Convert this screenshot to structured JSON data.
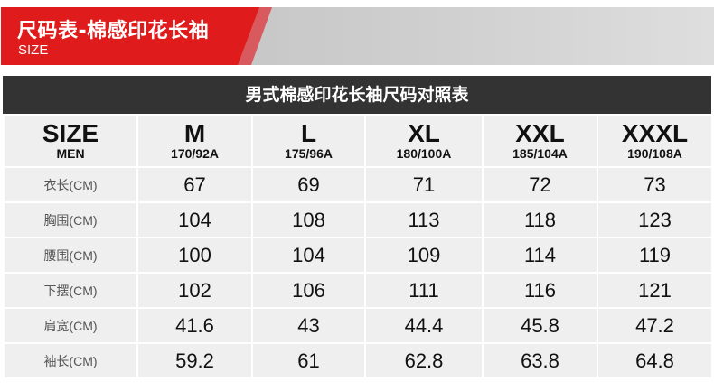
{
  "banner": {
    "title": "尺码表-棉感印花长袖",
    "subtitle": "SIZE",
    "accent_color": "#e01b1b"
  },
  "table": {
    "title": "男式棉感印花长袖尺码对照表",
    "corner": {
      "main": "SIZE",
      "sub": "MEN"
    },
    "sizes": [
      {
        "name": "M",
        "spec": "170/92A"
      },
      {
        "name": "L",
        "spec": "175/96A"
      },
      {
        "name": "XL",
        "spec": "180/100A"
      },
      {
        "name": "XXL",
        "spec": "185/104A"
      },
      {
        "name": "XXXL",
        "spec": "190/108A"
      }
    ],
    "rows": [
      {
        "label": "衣长(CM)",
        "values": [
          "67",
          "69",
          "71",
          "72",
          "73"
        ]
      },
      {
        "label": "胸围(CM)",
        "values": [
          "104",
          "108",
          "113",
          "118",
          "123"
        ]
      },
      {
        "label": "腰围(CM)",
        "values": [
          "100",
          "104",
          "109",
          "114",
          "119"
        ]
      },
      {
        "label": "下摆(CM)",
        "values": [
          "102",
          "106",
          "111",
          "116",
          "121"
        ]
      },
      {
        "label": "肩宽(CM)",
        "values": [
          "41.6",
          "43",
          "44.4",
          "45.8",
          "47.2"
        ]
      },
      {
        "label": "袖长(CM)",
        "values": [
          "59.2",
          "61",
          "62.8",
          "63.8",
          "64.8"
        ]
      }
    ]
  }
}
